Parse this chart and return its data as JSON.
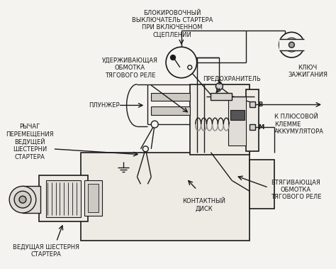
{
  "bg": "#f5f3ef",
  "lc": "#1a1a1a",
  "tc": "#1a1a1a",
  "figsize": [
    4.74,
    3.79
  ],
  "dpi": 100,
  "labels": {
    "top_switch": "БЛОКИРОВОЧНЫЙ\nВЫКЛЮЧАТЕЛЬ СТАРТЕРА\nПРИ ВКЛЮЧЕННОМ\nСЦЕПЛЕНИИ",
    "holding_coil": "УДЕРЖИВАЮЩАЯ\nОБМОТКА\nТЯГОВОГО РЕЛЕ",
    "plunger": "ПЛУНЖЕР",
    "lever": "РЫЧАГ\nПЕРЕМЕЩЕНИЯ\nВЕДУЩЕЙ\nШЕСТЕРНИ\nСТАРТЕРА",
    "drive_gear": "ВЕДУЩАЯ ШЕСТЕРНЯ\nСТАРТЕРА",
    "contact_disk": "КОНТАКТНЫЙ\nДИСК",
    "pull_coil": "ВТЯГИВАЮЩАЯ\nОБМОТКА\nТЯГОВОГО РЕЛЕ",
    "battery": "К ПЛЮСОВОЙ\nКЛЕММЕ\nАККУМУЛЯТОРА",
    "fuse": "ПРЕДОХРАНИТЕЛЬ",
    "ignition": "КЛЮЧ\nЗАЖИГАНИЯ"
  }
}
